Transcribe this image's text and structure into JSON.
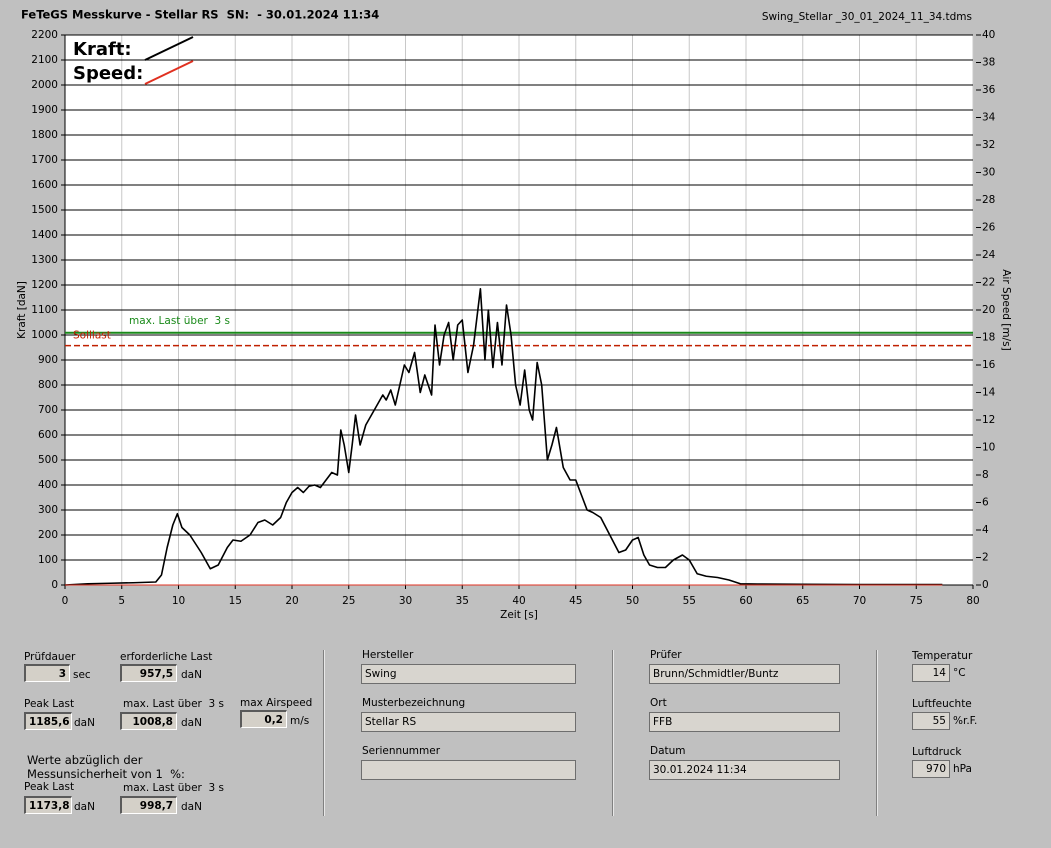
{
  "header": {
    "title": "FeTeGS Messkurve - Stellar RS  SN:  - 30.01.2024 11:34",
    "file": "Swing_Stellar _30_01_2024_11_34.tdms"
  },
  "chart_data": {
    "type": "line",
    "x_label": "Zeit [s]",
    "y_label": "Kraft [daN]",
    "y2_label": "Air Speed [m/s]",
    "xlim": [
      0,
      80
    ],
    "ylim": [
      0,
      2200
    ],
    "y2lim": [
      0,
      40
    ],
    "xticks": [
      0,
      5,
      10,
      15,
      20,
      25,
      30,
      35,
      40,
      45,
      50,
      55,
      60,
      65,
      70,
      75,
      80
    ],
    "yticks": [
      0,
      100,
      200,
      300,
      400,
      500,
      600,
      700,
      800,
      900,
      1000,
      1100,
      1200,
      1300,
      1400,
      1500,
      1600,
      1700,
      1800,
      1900,
      2000,
      2100,
      2200
    ],
    "y2ticks": [
      0,
      2,
      4,
      6,
      8,
      10,
      12,
      14,
      16,
      18,
      20,
      22,
      24,
      26,
      28,
      30,
      32,
      34,
      36,
      38,
      40
    ],
    "grid": true,
    "series": [
      {
        "name": "Kraft:",
        "color": "#000000",
        "x": [
          0,
          2,
          4,
          6,
          8,
          8.5,
          9,
          9.5,
          9.9,
          10.3,
          11,
          12,
          12.8,
          13.5,
          14.3,
          14.8,
          15.5,
          16.3,
          17,
          17.6,
          18.3,
          19,
          19.5,
          20,
          20.5,
          21,
          21.5,
          22,
          22.5,
          23,
          23.5,
          24,
          24.3,
          24.6,
          25,
          25.3,
          25.6,
          26,
          26.5,
          27,
          27.5,
          28,
          28.3,
          28.7,
          29.1,
          29.5,
          29.9,
          30.3,
          30.8,
          31.3,
          31.7,
          32.3,
          32.6,
          33,
          33.4,
          33.8,
          34.2,
          34.6,
          35,
          35.5,
          36,
          36.6,
          37,
          37.3,
          37.7,
          38.1,
          38.5,
          38.9,
          39.3,
          39.7,
          40.1,
          40.5,
          40.9,
          41.2,
          41.6,
          42,
          42.5,
          42.9,
          43.3,
          43.9,
          44.5,
          45,
          45.5,
          46,
          46.5,
          47.2,
          48,
          48.8,
          49.4,
          50,
          50.5,
          51,
          51.5,
          52.2,
          52.9,
          53.6,
          54.4,
          55,
          55.7,
          56.5,
          57.5,
          58.5,
          59.5,
          61,
          65,
          70,
          77.3
        ],
        "values": [
          0,
          5,
          7,
          9,
          12,
          40,
          150,
          240,
          285,
          230,
          200,
          130,
          65,
          80,
          150,
          180,
          175,
          200,
          250,
          260,
          240,
          270,
          330,
          370,
          390,
          370,
          395,
          400,
          390,
          420,
          450,
          440,
          620,
          560,
          450,
          560,
          680,
          560,
          640,
          680,
          720,
          760,
          740,
          780,
          720,
          800,
          880,
          850,
          930,
          770,
          840,
          760,
          1040,
          880,
          1000,
          1050,
          900,
          1040,
          1060,
          850,
          960,
          1185,
          900,
          1100,
          870,
          1050,
          880,
          1120,
          1000,
          800,
          720,
          860,
          700,
          660,
          890,
          800,
          500,
          560,
          630,
          470,
          420,
          420,
          360,
          300,
          290,
          270,
          200,
          130,
          140,
          180,
          190,
          120,
          80,
          70,
          70,
          100,
          120,
          100,
          45,
          35,
          30,
          20,
          5,
          4,
          3,
          2,
          2
        ]
      },
      {
        "name": "Speed:",
        "color": "#e03020",
        "axis": "y2",
        "x": [
          0,
          77.3
        ],
        "values": [
          0,
          0
        ]
      }
    ],
    "reference_lines": [
      {
        "label": "max. Last über  3 s",
        "value": 1008.8,
        "color": "#1a8a1a"
      },
      {
        "label": "Solllast",
        "value": 957.5,
        "color": "#c02000",
        "dashed": true
      }
    ]
  },
  "panel": {
    "pruefdauer": {
      "label": "Prüfdauer",
      "value": "3",
      "unit": "sec"
    },
    "erforderliche_last": {
      "label": "erforderliche Last",
      "value": "957,5",
      "unit": "daN"
    },
    "peak_last": {
      "label": "Peak Last",
      "value": "1185,6",
      "unit": "daN"
    },
    "max_last": {
      "label": "max. Last über  3 s",
      "value": "1008,8",
      "unit": "daN"
    },
    "max_airspeed": {
      "label": "max Airspeed",
      "value": "0,2",
      "unit": "m/s"
    },
    "note": [
      "Werte abzüglich der",
      "Messunsicherheit von 1  %:"
    ],
    "peak_last_corr": {
      "label": "Peak Last",
      "value": "1173,8",
      "unit": "daN"
    },
    "max_last_corr": {
      "label": "max. Last über  3 s",
      "value": "998,7",
      "unit": "daN"
    },
    "hersteller": {
      "label": "Hersteller",
      "value": "Swing"
    },
    "muster": {
      "label": "Musterbezeichnung",
      "value": "Stellar RS"
    },
    "serien": {
      "label": "Seriennummer"
    },
    "pruefer": {
      "label": "Prüfer",
      "value": "Brunn/Schmidtler/Buntz"
    },
    "ort": {
      "label": "Ort",
      "value": "FFB"
    },
    "datum": {
      "label": "Datum",
      "value": "30.01.2024 11:34"
    },
    "temperatur": {
      "label": "Temperatur",
      "value": "14",
      "unit": "°C"
    },
    "luftfeuchte": {
      "label": "Luftfeuchte",
      "value": "55",
      "unit": "%r.F."
    },
    "luftdruck": {
      "label": "Luftdruck",
      "value": "970",
      "unit": "hPa"
    }
  }
}
